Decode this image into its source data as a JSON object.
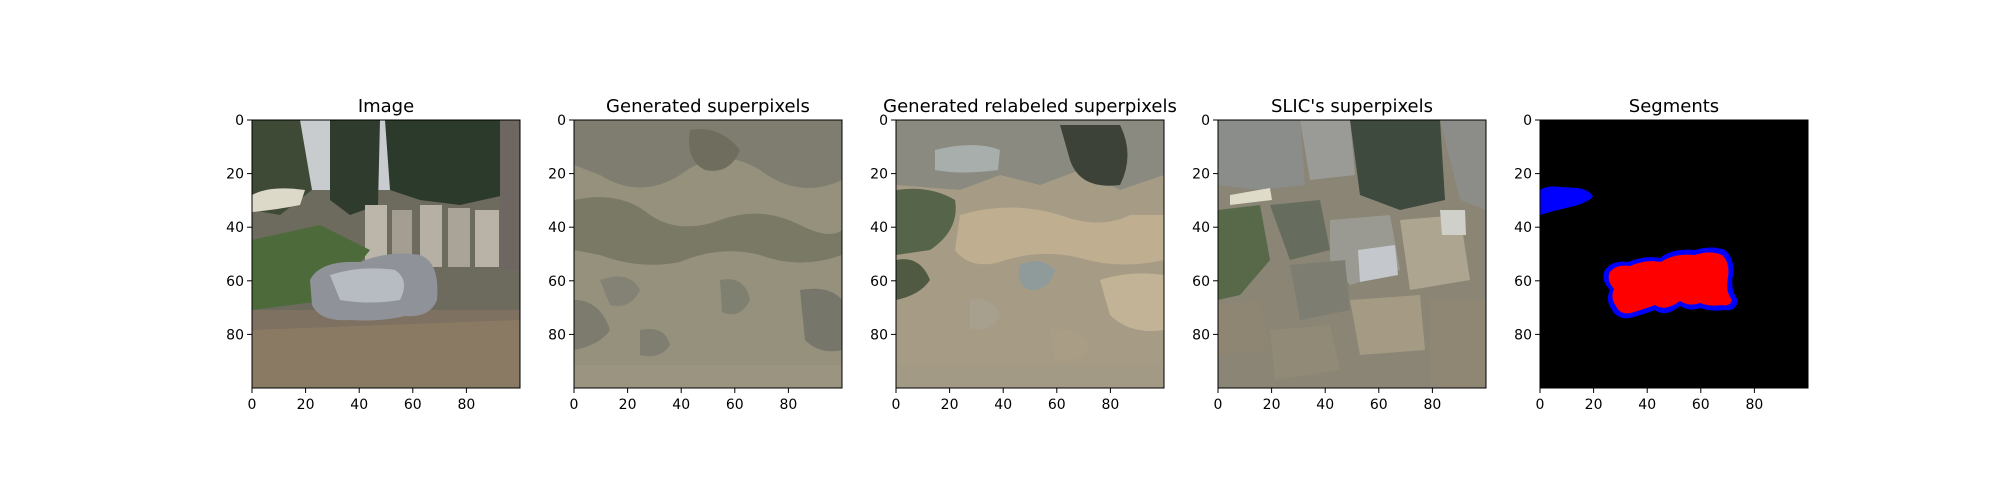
{
  "figure": {
    "panels": [
      {
        "id": "image",
        "title": "Image"
      },
      {
        "id": "generated",
        "title": "Generated superpixels"
      },
      {
        "id": "relabeled",
        "title": "Generated relabeled superpixels"
      },
      {
        "id": "slic",
        "title": "SLIC's superpixels"
      },
      {
        "id": "segments",
        "title": "Segments"
      }
    ],
    "x_ticks": [
      0,
      20,
      40,
      60,
      80
    ],
    "y_ticks": [
      0,
      20,
      40,
      60,
      80
    ],
    "axis_range": [
      0,
      100
    ],
    "colors": {
      "segment_red": "#ff0000",
      "segment_blue": "#0000ff",
      "segment_background": "#000000"
    }
  }
}
